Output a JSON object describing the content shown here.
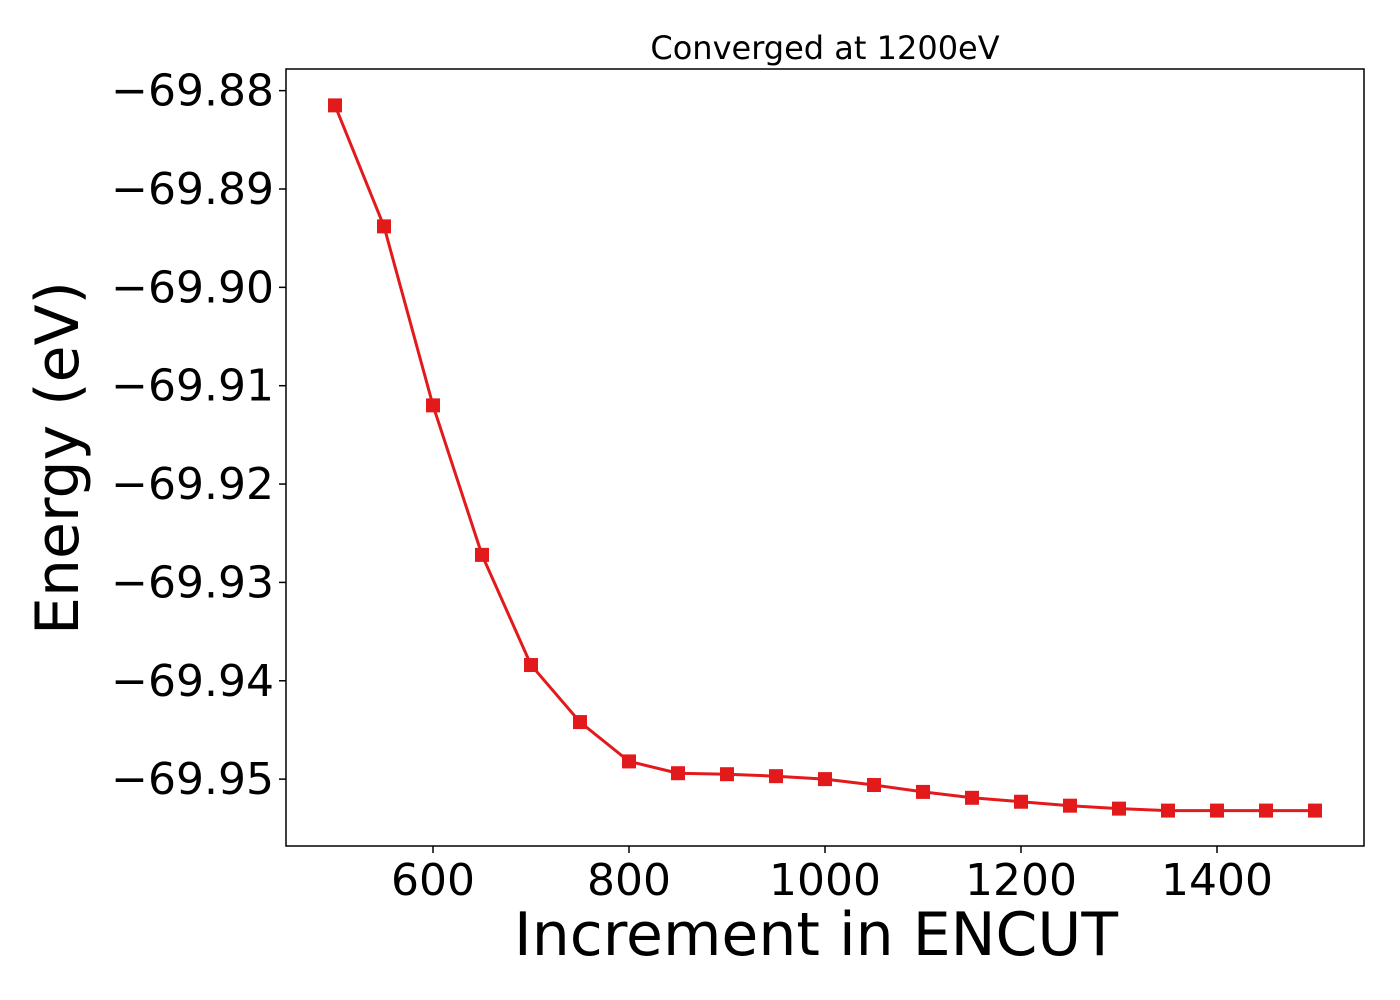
{
  "chart_data": {
    "type": "line",
    "title": "Converged at 1200eV",
    "xlabel": "Increment in ENCUT",
    "ylabel": "Energy (eV)",
    "xlim": [
      450,
      1550
    ],
    "ylim": [
      -69.9568,
      -69.8778
    ],
    "x_ticks": [
      600,
      800,
      1000,
      1200,
      1400
    ],
    "y_ticks": [
      -69.88,
      -69.89,
      -69.9,
      -69.91,
      -69.92,
      -69.93,
      -69.94,
      -69.95
    ],
    "y_tick_labels": [
      "−69.88",
      "−69.89",
      "−69.90",
      "−69.91",
      "−69.92",
      "−69.93",
      "−69.94",
      "−69.95"
    ],
    "grid": false,
    "legend": "none",
    "series": [
      {
        "marker": "square",
        "color": "#e31a1c",
        "x": [
          500,
          550,
          600,
          650,
          700,
          750,
          800,
          850,
          900,
          950,
          1000,
          1050,
          1100,
          1150,
          1200,
          1250,
          1300,
          1350,
          1400,
          1450,
          1500
        ],
        "y": [
          -69.8815,
          -69.8938,
          -69.912,
          -69.9272,
          -69.9384,
          -69.9442,
          -69.9482,
          -69.9494,
          -69.9495,
          -69.9497,
          -69.95,
          -69.9506,
          -69.9513,
          -69.9519,
          -69.9523,
          -69.9527,
          -69.953,
          -69.9532,
          -69.9532,
          -69.9532,
          -69.9532
        ]
      }
    ]
  }
}
